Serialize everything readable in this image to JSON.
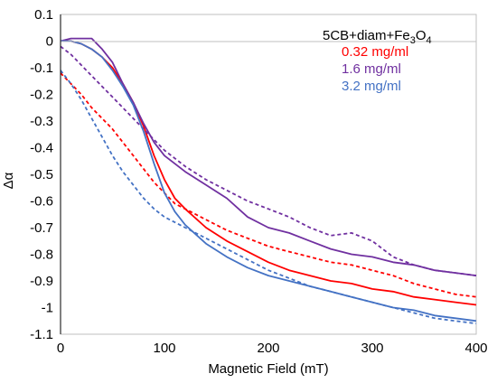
{
  "chart_data": {
    "type": "line",
    "title": "",
    "xlabel": "Magnetic Field (mT)",
    "ylabel": "Δα",
    "xlim": [
      0,
      400
    ],
    "ylim": [
      -1.1,
      0.1
    ],
    "xticks": [
      0,
      100,
      200,
      300,
      400
    ],
    "xtick_labels": [
      "0",
      "100",
      "200",
      "300",
      "400"
    ],
    "yticks": [
      0.1,
      0,
      -0.1,
      -0.2,
      -0.3,
      -0.4,
      -0.5,
      -0.6,
      -0.7,
      -0.8,
      -0.9,
      -1,
      -1.1
    ],
    "ytick_labels": [
      "0.1",
      "0",
      "-0.1",
      "-0.2",
      "-0.3",
      "-0.4",
      "-0.5",
      "-0.6",
      "-0.7",
      "-0.8",
      "-0.9",
      "-1",
      "-1.1"
    ],
    "grid": false,
    "legend_placement": "top-right",
    "legend_title": {
      "main": "5CB+diam+Fe",
      "sub": "3",
      "mid": "O",
      "sub2": "4"
    },
    "legend": [
      {
        "label": "0.32 mg/ml",
        "color": "#ff0000"
      },
      {
        "label": "1.6 mg/ml",
        "color": "#7030a0"
      },
      {
        "label": "3.2 mg/ml",
        "color": "#4472c4"
      }
    ],
    "series": [
      {
        "color": "#ff0000",
        "style": "solid",
        "x": [
          0,
          10,
          20,
          30,
          40,
          50,
          60,
          70,
          80,
          90,
          100,
          110,
          120,
          140,
          160,
          180,
          200,
          220,
          240,
          260,
          280,
          300,
          320,
          340,
          360,
          380,
          400
        ],
        "y": [
          0,
          0,
          -0.01,
          -0.03,
          -0.06,
          -0.1,
          -0.16,
          -0.23,
          -0.32,
          -0.43,
          -0.52,
          -0.59,
          -0.63,
          -0.7,
          -0.75,
          -0.79,
          -0.83,
          -0.86,
          -0.88,
          -0.9,
          -0.91,
          -0.93,
          -0.94,
          -0.96,
          -0.97,
          -0.98,
          -0.99
        ]
      },
      {
        "color": "#ff0000",
        "style": "dashed",
        "x": [
          0,
          10,
          20,
          30,
          40,
          50,
          60,
          70,
          80,
          90,
          100,
          110,
          120,
          140,
          160,
          180,
          200,
          220,
          240,
          260,
          280,
          300,
          320,
          340,
          360,
          380,
          400
        ],
        "y": [
          -0.12,
          -0.16,
          -0.2,
          -0.25,
          -0.29,
          -0.33,
          -0.38,
          -0.43,
          -0.48,
          -0.53,
          -0.57,
          -0.61,
          -0.63,
          -0.67,
          -0.71,
          -0.74,
          -0.77,
          -0.79,
          -0.81,
          -0.83,
          -0.84,
          -0.86,
          -0.88,
          -0.91,
          -0.93,
          -0.95,
          -0.96
        ]
      },
      {
        "color": "#7030a0",
        "style": "solid",
        "x": [
          0,
          10,
          20,
          30,
          40,
          50,
          60,
          70,
          80,
          90,
          100,
          110,
          120,
          140,
          160,
          180,
          200,
          220,
          240,
          260,
          280,
          300,
          320,
          340,
          360,
          380,
          400
        ],
        "y": [
          0,
          0.01,
          0.01,
          0.01,
          -0.03,
          -0.08,
          -0.16,
          -0.23,
          -0.31,
          -0.38,
          -0.43,
          -0.46,
          -0.49,
          -0.54,
          -0.59,
          -0.66,
          -0.7,
          -0.72,
          -0.75,
          -0.78,
          -0.8,
          -0.81,
          -0.83,
          -0.84,
          -0.86,
          -0.87,
          -0.88
        ]
      },
      {
        "color": "#7030a0",
        "style": "dashed",
        "x": [
          0,
          10,
          20,
          30,
          40,
          50,
          60,
          70,
          80,
          90,
          100,
          110,
          120,
          140,
          160,
          180,
          200,
          220,
          240,
          260,
          280,
          300,
          320,
          340,
          360,
          380,
          400
        ],
        "y": [
          -0.02,
          -0.05,
          -0.09,
          -0.13,
          -0.17,
          -0.21,
          -0.25,
          -0.29,
          -0.33,
          -0.37,
          -0.41,
          -0.44,
          -0.47,
          -0.52,
          -0.56,
          -0.6,
          -0.63,
          -0.66,
          -0.7,
          -0.73,
          -0.72,
          -0.75,
          -0.81,
          -0.84,
          -0.86,
          -0.87,
          -0.88
        ]
      },
      {
        "color": "#4472c4",
        "style": "solid",
        "x": [
          0,
          10,
          20,
          30,
          40,
          50,
          60,
          70,
          80,
          90,
          100,
          110,
          120,
          140,
          160,
          180,
          200,
          220,
          240,
          260,
          280,
          300,
          320,
          340,
          360,
          380,
          400
        ],
        "y": [
          0,
          0,
          -0.01,
          -0.03,
          -0.06,
          -0.11,
          -0.17,
          -0.24,
          -0.34,
          -0.46,
          -0.57,
          -0.64,
          -0.69,
          -0.76,
          -0.81,
          -0.85,
          -0.88,
          -0.9,
          -0.92,
          -0.94,
          -0.96,
          -0.98,
          -1,
          -1.01,
          -1.03,
          -1.04,
          -1.05
        ]
      },
      {
        "color": "#4472c4",
        "style": "dashed",
        "x": [
          0,
          10,
          20,
          30,
          40,
          50,
          60,
          70,
          80,
          90,
          100,
          110,
          120,
          140,
          160,
          180,
          200,
          220,
          240,
          260,
          280,
          300,
          320,
          340,
          360,
          380,
          400
        ],
        "y": [
          -0.11,
          -0.16,
          -0.22,
          -0.29,
          -0.36,
          -0.43,
          -0.49,
          -0.54,
          -0.59,
          -0.63,
          -0.66,
          -0.68,
          -0.7,
          -0.74,
          -0.78,
          -0.82,
          -0.86,
          -0.89,
          -0.92,
          -0.94,
          -0.96,
          -0.98,
          -1,
          -1.02,
          -1.04,
          -1.05,
          -1.06
        ]
      }
    ]
  }
}
